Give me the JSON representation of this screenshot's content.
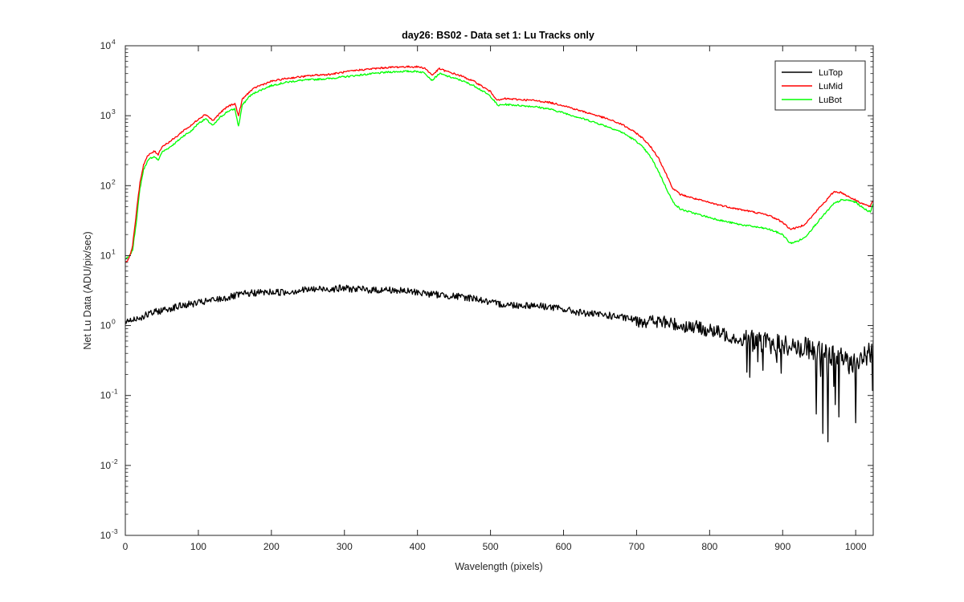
{
  "chart_data": {
    "type": "line",
    "title": "day26: BS02 - Data set 1: Lu Tracks only",
    "xlabel": "Wavelength (pixels)",
    "ylabel": "Net Lu Data (ADU/pix/sec)",
    "xlim": [
      0,
      1024
    ],
    "ylim": [
      0.001,
      10000
    ],
    "yscale": "log",
    "grid": false,
    "legend_position": "top-right",
    "x_ticks": [
      0,
      100,
      200,
      300,
      400,
      500,
      600,
      700,
      800,
      900,
      1000
    ],
    "x_tick_labels": [
      "0",
      "100",
      "200",
      "300",
      "400",
      "500",
      "600",
      "700",
      "800",
      "900",
      "1000"
    ],
    "y_ticks": [
      {
        "value": 10000,
        "base": "10",
        "exponent": "4"
      },
      {
        "value": 1000,
        "base": "10",
        "exponent": "3"
      },
      {
        "value": 100,
        "base": "10",
        "exponent": "2"
      },
      {
        "value": 10,
        "base": "10",
        "exponent": "1"
      },
      {
        "value": 1,
        "base": "10",
        "exponent": "0"
      },
      {
        "value": 0.1,
        "base": "10",
        "exponent": "-1"
      },
      {
        "value": 0.01,
        "base": "10",
        "exponent": "-2"
      },
      {
        "value": 0.001,
        "base": "10",
        "exponent": "-3"
      }
    ],
    "series": [
      {
        "name": "LuTop",
        "color": "#000000",
        "noise": "high",
        "x": [
          0,
          20,
          40,
          60,
          80,
          100,
          120,
          140,
          160,
          180,
          200,
          220,
          240,
          260,
          280,
          300,
          320,
          340,
          360,
          380,
          400,
          420,
          440,
          460,
          480,
          500,
          520,
          540,
          560,
          580,
          600,
          620,
          640,
          660,
          680,
          700,
          720,
          740,
          760,
          780,
          800,
          820,
          840,
          860,
          880,
          900,
          920,
          940,
          960,
          980,
          1000,
          1024
        ],
        "y": [
          1.15,
          1.3,
          1.55,
          1.75,
          1.95,
          2.1,
          2.3,
          2.5,
          2.8,
          2.95,
          3.0,
          3.0,
          3.2,
          3.3,
          3.35,
          3.4,
          3.3,
          3.2,
          3.25,
          3.1,
          3.0,
          2.8,
          2.7,
          2.55,
          2.45,
          2.1,
          2.0,
          1.95,
          1.95,
          1.85,
          1.7,
          1.55,
          1.45,
          1.4,
          1.3,
          1.2,
          1.15,
          1.1,
          1.0,
          0.95,
          0.85,
          0.75,
          0.65,
          0.6,
          0.55,
          0.52,
          0.5,
          0.45,
          0.4,
          0.35,
          0.3,
          0.45
        ]
      },
      {
        "name": "LuMid",
        "color": "#ff0000",
        "noise": "low",
        "x": [
          0,
          5,
          10,
          15,
          20,
          25,
          30,
          35,
          40,
          45,
          50,
          60,
          70,
          80,
          90,
          100,
          110,
          120,
          130,
          140,
          150,
          155,
          160,
          170,
          180,
          200,
          220,
          240,
          260,
          280,
          300,
          320,
          340,
          360,
          380,
          400,
          410,
          420,
          430,
          440,
          460,
          480,
          500,
          510,
          520,
          540,
          560,
          580,
          600,
          620,
          640,
          660,
          680,
          700,
          710,
          720,
          730,
          740,
          750,
          760,
          780,
          800,
          820,
          840,
          860,
          880,
          890,
          900,
          910,
          920,
          930,
          940,
          950,
          960,
          970,
          980,
          990,
          1000,
          1010,
          1020,
          1024
        ],
        "y": [
          8,
          9,
          14,
          40,
          110,
          200,
          260,
          290,
          310,
          280,
          360,
          420,
          500,
          620,
          720,
          900,
          1050,
          850,
          1100,
          1350,
          1500,
          1000,
          1700,
          2200,
          2600,
          3100,
          3400,
          3600,
          3800,
          3900,
          4200,
          4500,
          4700,
          4900,
          5000,
          5000,
          4800,
          3800,
          4700,
          4300,
          3700,
          3000,
          2200,
          1650,
          1750,
          1700,
          1650,
          1550,
          1400,
          1200,
          1050,
          900,
          750,
          560,
          460,
          350,
          250,
          150,
          90,
          75,
          65,
          57,
          51,
          46,
          42,
          38,
          34,
          30,
          24,
          25,
          28,
          36,
          48,
          62,
          82,
          80,
          70,
          62,
          55,
          50,
          62
        ]
      },
      {
        "name": "LuBot",
        "color": "#00ff00",
        "noise": "low",
        "x": [
          0,
          5,
          10,
          15,
          20,
          25,
          30,
          35,
          40,
          45,
          50,
          60,
          70,
          80,
          90,
          100,
          110,
          120,
          130,
          140,
          150,
          155,
          160,
          170,
          180,
          200,
          220,
          240,
          260,
          280,
          300,
          320,
          340,
          360,
          380,
          400,
          410,
          420,
          430,
          440,
          460,
          480,
          500,
          510,
          520,
          540,
          560,
          580,
          600,
          620,
          640,
          660,
          680,
          700,
          710,
          720,
          730,
          740,
          750,
          760,
          780,
          800,
          820,
          840,
          860,
          880,
          890,
          900,
          910,
          920,
          930,
          940,
          950,
          960,
          970,
          980,
          990,
          1000,
          1010,
          1020,
          1024
        ],
        "y": [
          9,
          9.5,
          12,
          30,
          90,
          170,
          220,
          250,
          260,
          230,
          300,
          350,
          420,
          520,
          600,
          780,
          900,
          720,
          950,
          1150,
          1250,
          700,
          1400,
          1900,
          2200,
          2700,
          3000,
          3200,
          3300,
          3400,
          3600,
          3800,
          4000,
          4200,
          4300,
          4300,
          4100,
          3200,
          4000,
          3700,
          3200,
          2600,
          1900,
          1400,
          1450,
          1400,
          1350,
          1250,
          1100,
          950,
          820,
          700,
          580,
          430,
          340,
          250,
          160,
          95,
          58,
          46,
          40,
          35,
          31,
          28,
          26,
          24,
          22,
          20,
          15,
          16,
          18,
          24,
          32,
          42,
          55,
          62,
          62,
          58,
          48,
          42,
          56
        ]
      }
    ]
  }
}
